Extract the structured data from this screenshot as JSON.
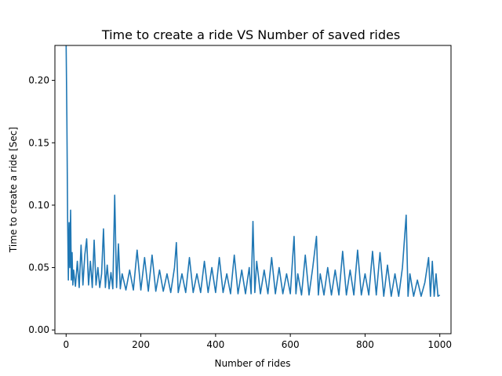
{
  "chart_data": {
    "type": "line",
    "title": "Time to create a ride VS Number of saved rides",
    "xlabel": "Number of rides",
    "ylabel": "Time to create a ride [Sec]",
    "xlim": [
      -30,
      1030
    ],
    "ylim": [
      -0.003,
      0.228
    ],
    "xticks": [
      0,
      200,
      400,
      600,
      800,
      1000
    ],
    "xtick_labels": [
      "0",
      "200",
      "400",
      "600",
      "800",
      "1000"
    ],
    "yticks": [
      0.0,
      0.05,
      0.1,
      0.15,
      0.2
    ],
    "ytick_labels": [
      "0.00",
      "0.05",
      "0.10",
      "0.15",
      "0.20"
    ],
    "grid": false,
    "legend": "none",
    "series": [
      {
        "color": "#1f77b4",
        "points": [
          [
            0,
            0.23
          ],
          [
            2,
            0.17
          ],
          [
            4,
            0.09
          ],
          [
            6,
            0.04
          ],
          [
            8,
            0.086
          ],
          [
            10,
            0.05
          ],
          [
            12,
            0.096
          ],
          [
            14,
            0.04
          ],
          [
            16,
            0.062
          ],
          [
            18,
            0.036
          ],
          [
            20,
            0.048
          ],
          [
            25,
            0.035
          ],
          [
            30,
            0.055
          ],
          [
            35,
            0.034
          ],
          [
            40,
            0.068
          ],
          [
            45,
            0.036
          ],
          [
            50,
            0.06
          ],
          [
            55,
            0.073
          ],
          [
            60,
            0.036
          ],
          [
            65,
            0.055
          ],
          [
            70,
            0.034
          ],
          [
            75,
            0.072
          ],
          [
            80,
            0.036
          ],
          [
            85,
            0.05
          ],
          [
            90,
            0.034
          ],
          [
            95,
            0.045
          ],
          [
            100,
            0.081
          ],
          [
            105,
            0.034
          ],
          [
            110,
            0.052
          ],
          [
            115,
            0.033
          ],
          [
            120,
            0.046
          ],
          [
            125,
            0.033
          ],
          [
            130,
            0.108
          ],
          [
            135,
            0.034
          ],
          [
            140,
            0.069
          ],
          [
            145,
            0.033
          ],
          [
            150,
            0.045
          ],
          [
            160,
            0.032
          ],
          [
            170,
            0.048
          ],
          [
            180,
            0.032
          ],
          [
            190,
            0.064
          ],
          [
            200,
            0.032
          ],
          [
            210,
            0.058
          ],
          [
            220,
            0.031
          ],
          [
            230,
            0.06
          ],
          [
            240,
            0.031
          ],
          [
            250,
            0.048
          ],
          [
            260,
            0.031
          ],
          [
            270,
            0.045
          ],
          [
            280,
            0.03
          ],
          [
            290,
            0.05
          ],
          [
            295,
            0.07
          ],
          [
            300,
            0.03
          ],
          [
            310,
            0.045
          ],
          [
            320,
            0.03
          ],
          [
            330,
            0.058
          ],
          [
            340,
            0.03
          ],
          [
            350,
            0.045
          ],
          [
            360,
            0.03
          ],
          [
            370,
            0.055
          ],
          [
            380,
            0.03
          ],
          [
            390,
            0.05
          ],
          [
            400,
            0.03
          ],
          [
            410,
            0.058
          ],
          [
            420,
            0.03
          ],
          [
            430,
            0.045
          ],
          [
            440,
            0.029
          ],
          [
            450,
            0.06
          ],
          [
            460,
            0.029
          ],
          [
            470,
            0.048
          ],
          [
            480,
            0.029
          ],
          [
            490,
            0.05
          ],
          [
            495,
            0.029
          ],
          [
            500,
            0.087
          ],
          [
            505,
            0.03
          ],
          [
            510,
            0.055
          ],
          [
            520,
            0.029
          ],
          [
            530,
            0.048
          ],
          [
            540,
            0.029
          ],
          [
            550,
            0.058
          ],
          [
            560,
            0.029
          ],
          [
            570,
            0.05
          ],
          [
            580,
            0.029
          ],
          [
            590,
            0.045
          ],
          [
            600,
            0.029
          ],
          [
            610,
            0.075
          ],
          [
            615,
            0.029
          ],
          [
            620,
            0.045
          ],
          [
            630,
            0.028
          ],
          [
            640,
            0.06
          ],
          [
            650,
            0.028
          ],
          [
            660,
            0.05
          ],
          [
            670,
            0.075
          ],
          [
            675,
            0.028
          ],
          [
            680,
            0.045
          ],
          [
            690,
            0.028
          ],
          [
            700,
            0.05
          ],
          [
            710,
            0.028
          ],
          [
            720,
            0.048
          ],
          [
            730,
            0.028
          ],
          [
            740,
            0.063
          ],
          [
            750,
            0.028
          ],
          [
            760,
            0.048
          ],
          [
            770,
            0.028
          ],
          [
            780,
            0.064
          ],
          [
            790,
            0.028
          ],
          [
            800,
            0.045
          ],
          [
            810,
            0.028
          ],
          [
            820,
            0.063
          ],
          [
            830,
            0.028
          ],
          [
            840,
            0.062
          ],
          [
            850,
            0.027
          ],
          [
            860,
            0.052
          ],
          [
            870,
            0.027
          ],
          [
            880,
            0.045
          ],
          [
            890,
            0.027
          ],
          [
            900,
            0.05
          ],
          [
            910,
            0.092
          ],
          [
            915,
            0.027
          ],
          [
            920,
            0.045
          ],
          [
            930,
            0.027
          ],
          [
            940,
            0.04
          ],
          [
            950,
            0.027
          ],
          [
            960,
            0.038
          ],
          [
            970,
            0.058
          ],
          [
            975,
            0.027
          ],
          [
            980,
            0.055
          ],
          [
            985,
            0.027
          ],
          [
            990,
            0.045
          ],
          [
            995,
            0.027
          ],
          [
            1000,
            0.028
          ]
        ]
      }
    ]
  }
}
